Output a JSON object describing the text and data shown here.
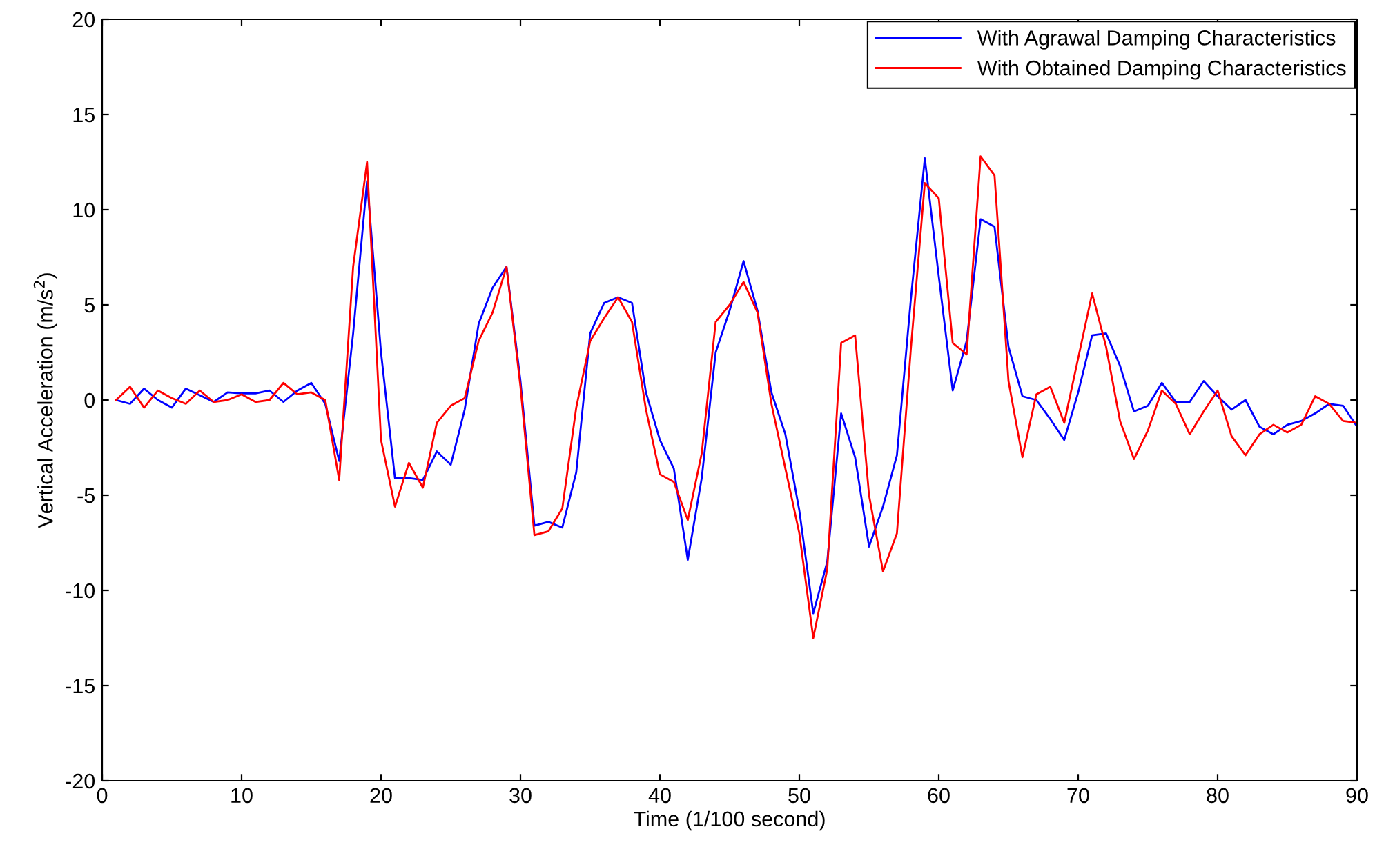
{
  "chart_data": {
    "type": "line",
    "xlabel": "Time (1/100 second)",
    "ylabel": "Vertical Acceleration (m/s$^{2}$)",
    "x": [
      1,
      2,
      3,
      4,
      5,
      6,
      7,
      8,
      9,
      10,
      11,
      12,
      13,
      14,
      15,
      16,
      17,
      18,
      19,
      20,
      21,
      22,
      23,
      24,
      25,
      26,
      27,
      28,
      29,
      30,
      31,
      32,
      33,
      34,
      35,
      36,
      37,
      38,
      39,
      40,
      41,
      42,
      43,
      44,
      45,
      46,
      47,
      48,
      49,
      50,
      51,
      52,
      53,
      54,
      55,
      56,
      57,
      58,
      59,
      60,
      61,
      62,
      63,
      64,
      65,
      66,
      67,
      68,
      69,
      70,
      71,
      72,
      73,
      74,
      75,
      76,
      77,
      78,
      79,
      80,
      81,
      82,
      83,
      84,
      85,
      86,
      87,
      88,
      89,
      90
    ],
    "series": [
      {
        "name": "With Agrawal Damping Characteristics",
        "color": "#0000ff",
        "values": [
          0,
          -0.2,
          0.6,
          0,
          -0.4,
          0.6,
          0.25,
          -0.1,
          0.4,
          0.35,
          0.35,
          0.5,
          -0.1,
          0.5,
          0.9,
          -0.2,
          -3.2,
          3.5,
          11.5,
          2.5,
          -4.1,
          -4.1,
          -4.2,
          -2.7,
          -3.4,
          -0.5,
          4.0,
          5.9,
          7.0,
          1.0,
          -6.6,
          -6.4,
          -6.7,
          -3.8,
          3.5,
          5.1,
          5.4,
          5.1,
          0.4,
          -2.1,
          -3.6,
          -8.4,
          -4.1,
          2.5,
          4.7,
          7.3,
          4.7,
          0.4,
          -1.8,
          -5.8,
          -11.2,
          -8.5,
          -0.7,
          -3.0,
          -7.7,
          -5.6,
          -2.9,
          5.3,
          12.7,
          6.5,
          0.5,
          3.1,
          9.5,
          9.1,
          2.8,
          0.2,
          0,
          -1.0,
          -2.1,
          0.4,
          3.4,
          3.5,
          1.8,
          -0.6,
          -0.3,
          0.9,
          -0.1,
          -0.1,
          1.0,
          0.2,
          -0.5,
          0,
          -1.4,
          -1.8,
          -1.3,
          -1.1,
          -0.7,
          -0.2,
          -0.3,
          -1.4
        ]
      },
      {
        "name": "With Obtained Damping Characteristics",
        "color": "#ff0000",
        "values": [
          0,
          0.7,
          -0.4,
          0.5,
          0.1,
          -0.2,
          0.5,
          -0.1,
          0,
          0.3,
          -0.1,
          0,
          0.9,
          0.3,
          0.4,
          0,
          -4.2,
          7.0,
          12.5,
          -2.1,
          -5.6,
          -3.3,
          -4.6,
          -1.2,
          -0.3,
          0.1,
          3.1,
          4.6,
          7.0,
          0.7,
          -7.1,
          -6.9,
          -5.7,
          -0.4,
          3.1,
          4.3,
          5.4,
          4.1,
          -0.5,
          -3.9,
          -4.3,
          -6.3,
          -2.8,
          4.1,
          5.0,
          6.2,
          4.6,
          -0.2,
          -3.6,
          -7.0,
          -12.5,
          -8.9,
          3.0,
          3.4,
          -5.0,
          -9.0,
          -7.0,
          2.7,
          11.4,
          10.6,
          3.0,
          2.4,
          12.8,
          11.8,
          1.0,
          -3.0,
          0.3,
          0.7,
          -1.2,
          2.2,
          5.6,
          2.8,
          -1.1,
          -3.1,
          -1.6,
          0.5,
          -0.2,
          -1.8,
          -0.6,
          0.5,
          -1.9,
          -2.9,
          -1.8,
          -1.3,
          -1.7,
          -1.3,
          0.2,
          -0.2,
          -1.1,
          -1.2
        ]
      }
    ],
    "xlim": [
      0,
      90
    ],
    "xticks": [
      0,
      10,
      20,
      30,
      40,
      50,
      60,
      70,
      80,
      90
    ],
    "ylim": [
      -20,
      20
    ],
    "yticks": [
      -20,
      -15,
      -10,
      -5,
      0,
      5,
      10,
      15,
      20
    ],
    "grid": false,
    "legend": "top right",
    "marker": "none",
    "line_style": "solid"
  }
}
